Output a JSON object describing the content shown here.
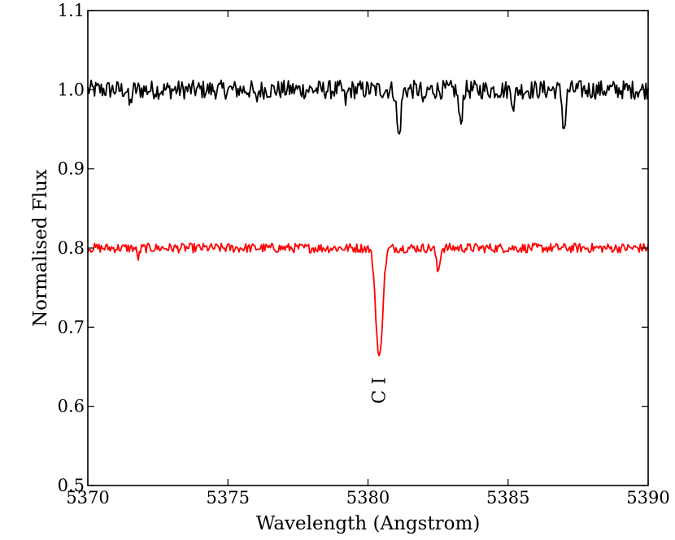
{
  "chart_data": {
    "type": "line",
    "title": "",
    "xlabel": "Wavelength (Angstrom)",
    "ylabel": "Normalised Flux",
    "xlim": [
      5370,
      5390
    ],
    "ylim": [
      0.5,
      1.1
    ],
    "x_ticks": [
      5370,
      5375,
      5380,
      5385,
      5390
    ],
    "x_tick_labels": [
      "5370",
      "5375",
      "5380",
      "5385",
      "5390"
    ],
    "y_ticks": [
      0.5,
      0.6,
      0.7,
      0.8,
      0.9,
      1.0,
      1.1
    ],
    "y_tick_labels": [
      "0.5",
      "0.6",
      "0.7",
      "0.8",
      "0.9",
      "1.0",
      "1.1"
    ],
    "grid": false,
    "legend": "none",
    "series": [
      {
        "color": "#000000",
        "continuum": 1.0,
        "noise": 0.012,
        "lines": [
          {
            "x": 5371.5,
            "depth": 0.02,
            "width": 0.05
          },
          {
            "x": 5376.0,
            "depth": 0.015,
            "width": 0.05
          },
          {
            "x": 5379.2,
            "depth": 0.015,
            "width": 0.05
          },
          {
            "x": 5381.1,
            "depth": 0.06,
            "width": 0.07
          },
          {
            "x": 5382.0,
            "depth": 0.02,
            "width": 0.05
          },
          {
            "x": 5383.3,
            "depth": 0.045,
            "width": 0.06
          },
          {
            "x": 5385.2,
            "depth": 0.02,
            "width": 0.05
          },
          {
            "x": 5387.0,
            "depth": 0.05,
            "width": 0.06
          }
        ]
      },
      {
        "color": "#ff0000",
        "continuum": 0.8,
        "noise": 0.006,
        "lines": [
          {
            "x": 5371.8,
            "depth": 0.012,
            "width": 0.05
          },
          {
            "x": 5380.4,
            "depth": 0.14,
            "width": 0.12
          },
          {
            "x": 5382.5,
            "depth": 0.03,
            "width": 0.06
          }
        ]
      }
    ],
    "annotations": [
      {
        "text": "C I",
        "x": 5380.4,
        "y": 0.62,
        "rotation": -90
      }
    ]
  }
}
